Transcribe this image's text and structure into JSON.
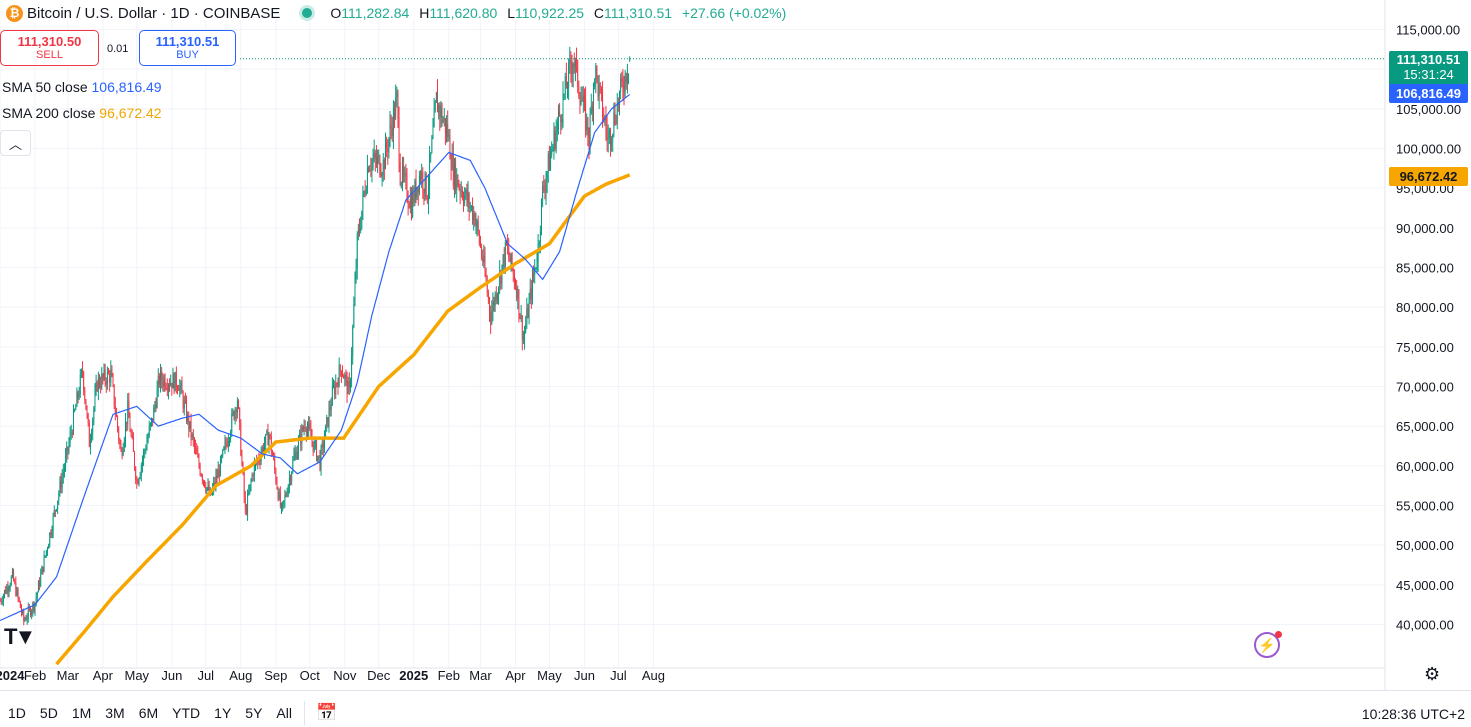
{
  "header": {
    "logo_symbol": "₿",
    "title": "Bitcoin / U.S. Dollar · 1D · COINBASE",
    "ohlc": [
      {
        "key": "O",
        "value": "111,282.84"
      },
      {
        "key": "H",
        "value": "111,620.80"
      },
      {
        "key": "L",
        "value": "110,922.25"
      },
      {
        "key": "C",
        "value": "111,310.51"
      }
    ],
    "change": "+27.66 (+0.02%)",
    "status_color": "#22ab94"
  },
  "trade": {
    "sell_price": "111,310.50",
    "sell_label": "SELL",
    "spread": "0.01",
    "buy_price": "111,310.51",
    "buy_label": "BUY"
  },
  "indicators": {
    "sma50_label": "SMA 50 close",
    "sma50_value": "106,816.49",
    "sma200_label": "SMA 200 close",
    "sma200_value": "96,672.42",
    "collapse_icon": "chevron-up-icon"
  },
  "price_labels": {
    "last": "111,310.51",
    "countdown": "15:31:24",
    "sma50": "106,816.49",
    "sma200": "96,672.42"
  },
  "bottom_bar": {
    "ranges": [
      "1D",
      "5D",
      "1M",
      "3M",
      "6M",
      "YTD",
      "1Y",
      "5Y",
      "All"
    ],
    "clock": "10:28:36 UTC+2"
  },
  "colors": {
    "up": "#089981",
    "down": "#f23645",
    "sma50": "#2962ff",
    "sma200": "#f7a600"
  },
  "chart_data": {
    "type": "candlestick",
    "ylim": [
      35000,
      118000
    ],
    "yticks": [
      "115,000.00",
      "110,000.00",
      "105,000.00",
      "100,000.00",
      "95,000.00",
      "90,000.00",
      "85,000.00",
      "80,000.00",
      "75,000.00",
      "70,000.00",
      "65,000.00",
      "60,000.00",
      "55,000.00",
      "50,000.00",
      "45,000.00",
      "40,000.00"
    ],
    "ytick_values": [
      115000,
      110000,
      105000,
      100000,
      95000,
      90000,
      85000,
      80000,
      75000,
      70000,
      65000,
      60000,
      55000,
      50000,
      45000,
      40000
    ],
    "xticks": [
      "2024",
      "Feb",
      "Mar",
      "Apr",
      "May",
      "Jun",
      "Jul",
      "Aug",
      "Sep",
      "Oct",
      "Nov",
      "Dec",
      "2025",
      "Feb",
      "Mar",
      "Apr",
      "May",
      "Jun",
      "Jul",
      "Aug"
    ],
    "xtick_dates": [
      "2024-01-01",
      "2024-02-01",
      "2024-03-01",
      "2024-04-01",
      "2024-05-01",
      "2024-06-01",
      "2024-07-01",
      "2024-08-01",
      "2024-09-01",
      "2024-10-01",
      "2024-11-01",
      "2024-12-01",
      "2025-01-01",
      "2025-02-01",
      "2025-03-01",
      "2025-04-01",
      "2025-05-01",
      "2025-06-01",
      "2025-07-01",
      "2025-08-01"
    ],
    "bold_xticks": [
      "2024",
      "2025"
    ],
    "start_date": "2024-01-01",
    "end_date": "2025-07-11",
    "close_anchors": [
      [
        "2024-01-01",
        43000
      ],
      [
        "2024-01-12",
        46000
      ],
      [
        "2024-01-22",
        40500
      ],
      [
        "2024-02-01",
        42800
      ],
      [
        "2024-02-15",
        52000
      ],
      [
        "2024-03-01",
        62000
      ],
      [
        "2024-03-14",
        72000
      ],
      [
        "2024-03-20",
        63000
      ],
      [
        "2024-03-27",
        70500
      ],
      [
        "2024-04-08",
        71500
      ],
      [
        "2024-04-17",
        61500
      ],
      [
        "2024-04-23",
        67000
      ],
      [
        "2024-05-01",
        58000
      ],
      [
        "2024-05-15",
        66000
      ],
      [
        "2024-05-21",
        71000
      ],
      [
        "2024-06-07",
        70500
      ],
      [
        "2024-06-24",
        60500
      ],
      [
        "2024-07-05",
        56000
      ],
      [
        "2024-07-14",
        60000
      ],
      [
        "2024-07-29",
        68500
      ],
      [
        "2024-08-05",
        54000
      ],
      [
        "2024-08-12",
        59500
      ],
      [
        "2024-08-26",
        64000
      ],
      [
        "2024-09-06",
        54000
      ],
      [
        "2024-09-17",
        61000
      ],
      [
        "2024-09-27",
        65500
      ],
      [
        "2024-10-10",
        60500
      ],
      [
        "2024-10-21",
        69000
      ],
      [
        "2024-10-29",
        72500
      ],
      [
        "2024-11-05",
        69000
      ],
      [
        "2024-11-12",
        88000
      ],
      [
        "2024-11-22",
        98500
      ],
      [
        "2024-12-05",
        98000
      ],
      [
        "2024-12-17",
        106000
      ],
      [
        "2024-12-20",
        97000
      ],
      [
        "2024-12-30",
        93000
      ],
      [
        "2025-01-07",
        97000
      ],
      [
        "2025-01-13",
        94500
      ],
      [
        "2025-01-21",
        106000
      ],
      [
        "2025-01-31",
        102000
      ],
      [
        "2025-02-05",
        97000
      ],
      [
        "2025-02-24",
        91500
      ],
      [
        "2025-03-03",
        86000
      ],
      [
        "2025-03-10",
        79000
      ],
      [
        "2025-03-24",
        87500
      ],
      [
        "2025-04-02",
        82500
      ],
      [
        "2025-04-08",
        76000
      ],
      [
        "2025-04-21",
        87500
      ],
      [
        "2025-04-25",
        94500
      ],
      [
        "2025-05-08",
        103000
      ],
      [
        "2025-05-22",
        111500
      ],
      [
        "2025-06-05",
        101500
      ],
      [
        "2025-06-10",
        110000
      ],
      [
        "2025-06-22",
        101000
      ],
      [
        "2025-07-01",
        106000
      ],
      [
        "2025-07-11",
        111310.51
      ]
    ],
    "sma50_anchors": [
      [
        "2024-01-01",
        40500
      ],
      [
        "2024-02-01",
        42500
      ],
      [
        "2024-02-20",
        46000
      ],
      [
        "2024-03-15",
        56000
      ],
      [
        "2024-04-10",
        66500
      ],
      [
        "2024-05-01",
        67500
      ],
      [
        "2024-05-20",
        65000
      ],
      [
        "2024-06-10",
        66000
      ],
      [
        "2024-06-25",
        66500
      ],
      [
        "2024-07-12",
        64500
      ],
      [
        "2024-08-01",
        63500
      ],
      [
        "2024-08-20",
        61500
      ],
      [
        "2024-09-05",
        61000
      ],
      [
        "2024-09-20",
        59000
      ],
      [
        "2024-10-10",
        60500
      ],
      [
        "2024-10-29",
        64500
      ],
      [
        "2024-11-12",
        70500
      ],
      [
        "2024-11-25",
        79000
      ],
      [
        "2024-12-10",
        87000
      ],
      [
        "2024-12-25",
        93500
      ],
      [
        "2025-01-10",
        96000
      ],
      [
        "2025-02-01",
        99500
      ],
      [
        "2025-02-20",
        98500
      ],
      [
        "2025-03-05",
        95000
      ],
      [
        "2025-03-25",
        88000
      ],
      [
        "2025-04-10",
        86000
      ],
      [
        "2025-04-25",
        83500
      ],
      [
        "2025-05-10",
        87000
      ],
      [
        "2025-05-25",
        94500
      ],
      [
        "2025-06-10",
        102000
      ],
      [
        "2025-06-25",
        105000
      ],
      [
        "2025-07-11",
        106816.49
      ]
    ],
    "sma200_anchors": [
      [
        "2024-02-20",
        35000
      ],
      [
        "2024-03-15",
        39000
      ],
      [
        "2024-04-10",
        43500
      ],
      [
        "2024-05-10",
        48000
      ],
      [
        "2024-06-10",
        52500
      ],
      [
        "2024-07-10",
        57500
      ],
      [
        "2024-08-10",
        60000
      ],
      [
        "2024-09-01",
        63000
      ],
      [
        "2024-10-01",
        63500
      ],
      [
        "2024-10-31",
        63500
      ],
      [
        "2024-12-01",
        70000
      ],
      [
        "2025-01-01",
        74000
      ],
      [
        "2025-01-31",
        79500
      ],
      [
        "2025-03-01",
        82500
      ],
      [
        "2025-04-01",
        85500
      ],
      [
        "2025-05-01",
        88000
      ],
      [
        "2025-06-01",
        94000
      ],
      [
        "2025-06-20",
        95500
      ],
      [
        "2025-07-11",
        96672.42
      ]
    ],
    "last_price": 111310.51
  }
}
